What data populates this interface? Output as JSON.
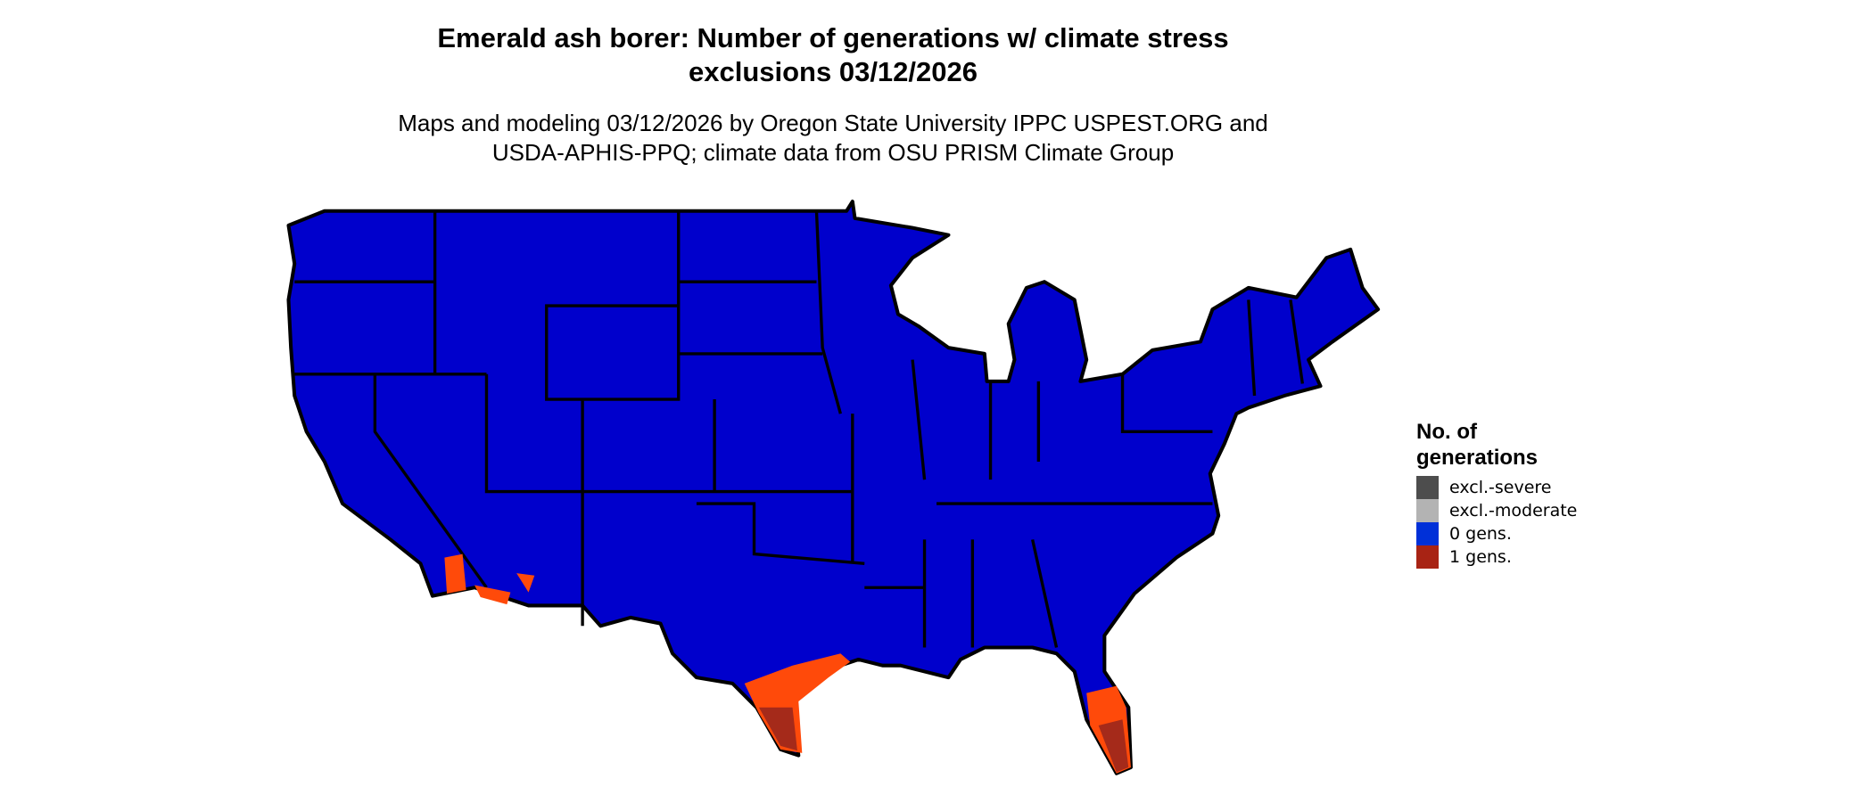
{
  "title_line1": "Emerald ash borer: Number of generations w/ climate stress",
  "title_line2": "exclusions 03/12/2026",
  "subtitle_line1": "Maps and modeling 03/12/2026 by Oregon State University IPPC USPEST.ORG and",
  "subtitle_line2": "USDA-APHIS-PPQ; climate data from OSU PRISM Climate Group",
  "map": {
    "region": "Contiguous United States",
    "colors": {
      "land_0_gens": "#0000cc",
      "hot_1_gens": "#ff4a0a",
      "dark_1_gens": "#a52a1a",
      "borders": "#000000"
    }
  },
  "legend": {
    "title_line1": "No. of",
    "title_line2": "generations",
    "items": [
      {
        "label": "excl.-severe",
        "color": "#4d4d4d"
      },
      {
        "label": "excl.-moderate",
        "color": "#b3b3b3"
      },
      {
        "label": "0 gens.",
        "color": "#0030d8"
      },
      {
        "label": "1 gens.",
        "color": "#a82314"
      }
    ]
  }
}
